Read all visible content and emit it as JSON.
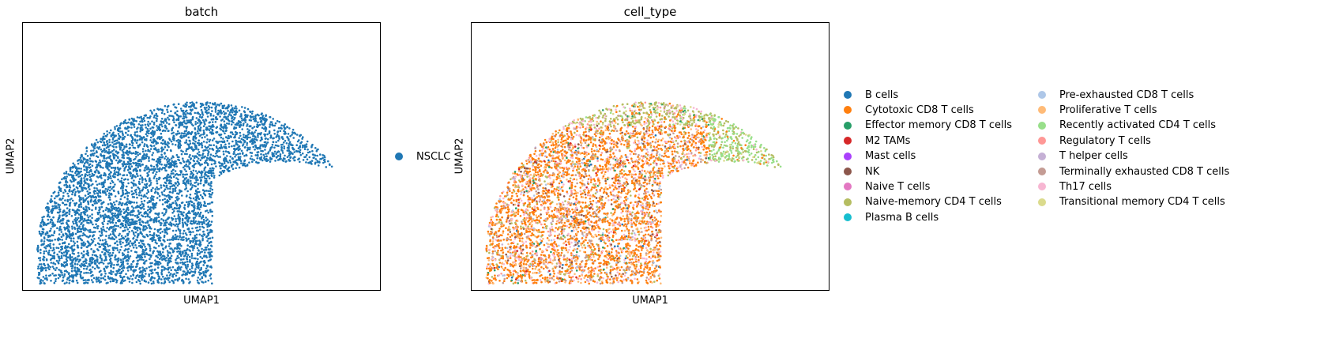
{
  "chart_data": [
    {
      "type": "scatter",
      "title": "batch",
      "xlabel": "UMAP1",
      "ylabel": "UMAP2",
      "grid": false,
      "legend_position": "right",
      "series": [
        {
          "name": "NSCLC",
          "color": "#1f77b4"
        }
      ]
    },
    {
      "type": "scatter",
      "title": "cell_type",
      "xlabel": "UMAP1",
      "ylabel": "UMAP2",
      "grid": false,
      "legend_position": "right",
      "series": [
        {
          "name": "B cells",
          "color": "#1f77b4"
        },
        {
          "name": "Cytotoxic CD8 T cells",
          "color": "#ff7f0e"
        },
        {
          "name": "Effector memory CD8 T cells",
          "color": "#279e68"
        },
        {
          "name": "M2 TAMs",
          "color": "#d62728"
        },
        {
          "name": "Mast cells",
          "color": "#aa40fc"
        },
        {
          "name": "NK",
          "color": "#8c564b"
        },
        {
          "name": "Naive T cells",
          "color": "#e377c2"
        },
        {
          "name": "Naive-memory CD4 T cells",
          "color": "#b5bd61"
        },
        {
          "name": "Plasma B cells",
          "color": "#17becf"
        },
        {
          "name": "Pre-exhausted CD8 T cells",
          "color": "#aec7e8"
        },
        {
          "name": "Proliferative T cells",
          "color": "#ffbb78"
        },
        {
          "name": "Recently activated CD4 T cells",
          "color": "#98df8a"
        },
        {
          "name": "Regulatory T cells",
          "color": "#ff9896"
        },
        {
          "name": "T helper cells",
          "color": "#c5b0d5"
        },
        {
          "name": "Terminally exhausted CD8 T cells",
          "color": "#c49c94"
        },
        {
          "name": "Th17 cells",
          "color": "#f7b6d2"
        },
        {
          "name": "Transitional memory CD4 T cells",
          "color": "#dbdb8d"
        }
      ]
    }
  ]
}
